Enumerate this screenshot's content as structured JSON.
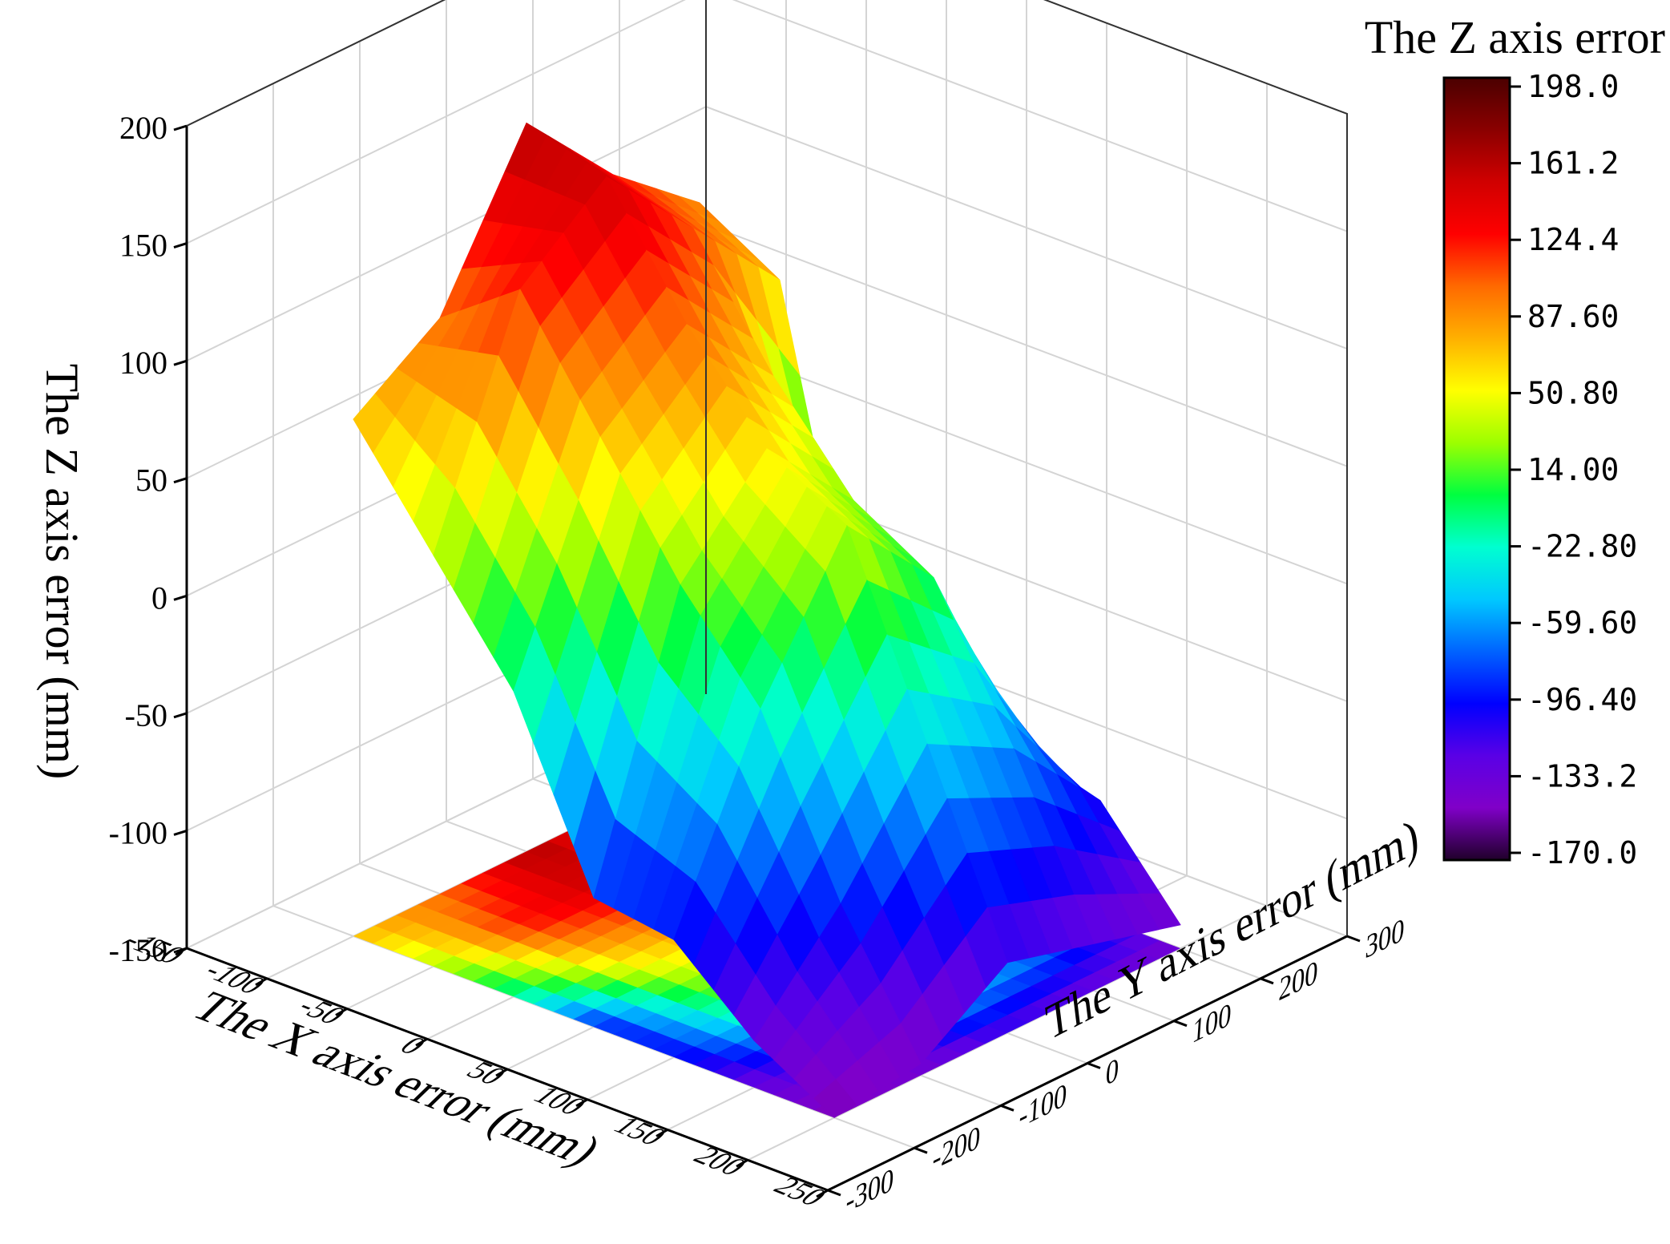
{
  "chart_data": {
    "type": "surface3d",
    "title": "",
    "xlabel": "The X axis error (mm)",
    "ylabel": "The Y axis error (mm)",
    "zlabel": "The Z axis error (mm)",
    "xlim": [
      -150,
      250
    ],
    "ylim": [
      -300,
      300
    ],
    "zlim": [
      -150,
      200
    ],
    "x_ticks": [
      "-150",
      "-100",
      "-50",
      "0",
      "50",
      "100",
      "150",
      "200",
      "250"
    ],
    "y_ticks": [
      "-300",
      "-200",
      "-100",
      "0",
      "100",
      "200",
      "300"
    ],
    "z_ticks": [
      "-150",
      "-100",
      "-50",
      "0",
      "50",
      "100",
      "150",
      "200"
    ],
    "grid": true,
    "projection": "surface with projected color-map contour on floor",
    "colorbar": {
      "title": "The Z axis error",
      "ticks": [
        "198.0",
        "161.2",
        "124.4",
        "87.60",
        "50.80",
        "14.00",
        "-22.80",
        "-59.60",
        "-96.40",
        "-133.2",
        "-170.0"
      ],
      "range": [
        -170.0,
        198.0
      ],
      "colors": [
        "#4b0000",
        "#8b0000",
        "#d00000",
        "#ff0000",
        "#ff6a00",
        "#ffb000",
        "#ffff00",
        "#9cff00",
        "#00ff40",
        "#00ffd0",
        "#00c8ff",
        "#0064ff",
        "#0000ff",
        "#5a00e6",
        "#8000c8",
        "#20002a"
      ]
    },
    "grid_x": [
      -100,
      -50,
      0,
      50,
      100,
      150,
      200
    ],
    "grid_y": [
      -200,
      -100,
      0,
      100,
      200
    ],
    "z_values": [
      [
        70,
        95,
        160,
        120,
        90
      ],
      [
        25,
        120,
        150,
        110,
        70
      ],
      [
        -20,
        70,
        100,
        60,
        -80
      ],
      [
        -95,
        20,
        60,
        20,
        -100
      ],
      [
        -100,
        -20,
        40,
        0,
        -90
      ],
      [
        -130,
        -90,
        -40,
        -60,
        -100
      ],
      [
        -150,
        -145,
        -120,
        -130,
        -140
      ]
    ]
  }
}
